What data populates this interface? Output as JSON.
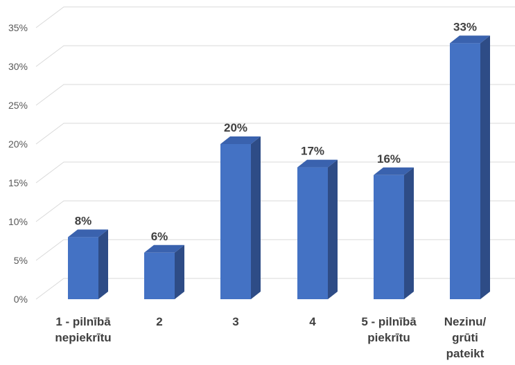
{
  "chart_data": {
    "type": "bar",
    "categories": [
      [
        "1 - pilnībā",
        "nepiekrītu"
      ],
      [
        "2"
      ],
      [
        "3"
      ],
      [
        "4"
      ],
      [
        "5 - pilnībā",
        "piekrītu"
      ],
      [
        "Nezinu/",
        "grūti",
        "pateikt"
      ]
    ],
    "values": [
      8,
      6,
      20,
      17,
      16,
      33
    ],
    "data_labels": [
      "8%",
      "6%",
      "20%",
      "17%",
      "16%",
      "33%"
    ],
    "y_ticks": [
      "0%",
      "5%",
      "10%",
      "15%",
      "20%",
      "25%",
      "30%",
      "35%"
    ],
    "ylim": [
      0,
      35
    ],
    "grid": true,
    "bar_style": "3d-column",
    "colors": {
      "front": "#4472C4",
      "side": "#2E4C86",
      "top": "#3A62AE",
      "grid": "#D9D9D9",
      "text": "#404040",
      "tick_text": "#595959"
    }
  }
}
